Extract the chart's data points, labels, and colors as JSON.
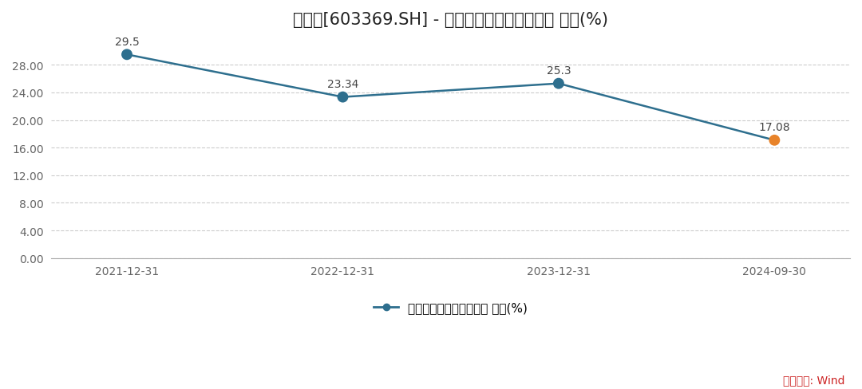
{
  "title": "今世缘[603369.SH] - 归属母公司股东的净利润 同比(%)",
  "x_labels": [
    "2021-12-31",
    "2022-12-31",
    "2023-12-31",
    "2024-09-30"
  ],
  "y_values": [
    29.5,
    23.34,
    25.3,
    17.08
  ],
  "line_color": "#2e6f8e",
  "marker_colors": [
    "#2e6f8e",
    "#2e6f8e",
    "#2e6f8e",
    "#e8832a"
  ],
  "marker_size": 10,
  "ylim_min": 0.0,
  "ylim_max": 32.0,
  "yticks": [
    0.0,
    4.0,
    8.0,
    12.0,
    16.0,
    20.0,
    24.0,
    28.0
  ],
  "legend_label": "归属母公司股东的净利润 同比(%)",
  "source_text": "数据来源: Wind",
  "source_color": "#cc2222",
  "bg_color": "#ffffff",
  "grid_color": "#cccccc",
  "title_fontsize": 15,
  "label_fontsize": 11,
  "annotation_fontsize": 10,
  "tick_fontsize": 10
}
